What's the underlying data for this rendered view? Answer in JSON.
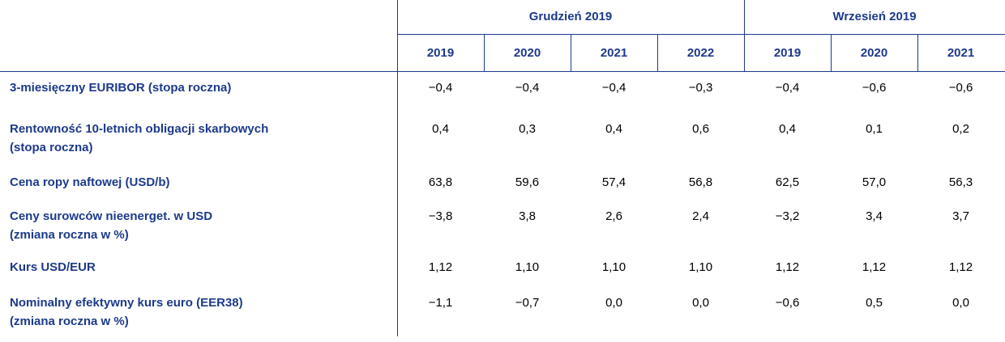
{
  "table": {
    "groups": [
      "Grudzień 2019",
      "Wrzesień 2019"
    ],
    "years": [
      "2019",
      "2020",
      "2021",
      "2022",
      "2019",
      "2020",
      "2021"
    ],
    "rows": [
      {
        "label": [
          "3-miesięczny EURIBOR (stopa roczna)"
        ],
        "values": [
          "−0,4",
          "−0,4",
          "−0,4",
          "−0,3",
          "−0,4",
          "−0,6",
          "−0,6"
        ]
      },
      {
        "label": [
          "Rentowność 10-letnich obligacji skarbowych",
          "(stopa roczna)"
        ],
        "values": [
          "0,4",
          "0,3",
          "0,4",
          "0,6",
          "0,4",
          "0,1",
          "0,2"
        ]
      },
      {
        "label": [
          "Cena ropy naftowej (USD/b)"
        ],
        "values": [
          "63,8",
          "59,6",
          "57,4",
          "56,8",
          "62,5",
          "57,0",
          "56,3"
        ]
      },
      {
        "label": [
          "Ceny surowców nieenerget. w USD",
          "(zmiana roczna w %)"
        ],
        "values": [
          "−3,8",
          "3,8",
          "2,6",
          "2,4",
          "−3,2",
          "3,4",
          "3,7"
        ]
      },
      {
        "label": [
          "Kurs USD/EUR"
        ],
        "values": [
          "1,12",
          "1,10",
          "1,10",
          "1,10",
          "1,12",
          "1,12",
          "1,12"
        ]
      },
      {
        "label": [
          "Nominalny efektywny kurs euro (EER38)",
          "(zmiana roczna w %)"
        ],
        "values": [
          "−1,1",
          "−0,7",
          "0,0",
          "0,0",
          "−0,6",
          "0,5",
          "0,0"
        ]
      }
    ]
  }
}
